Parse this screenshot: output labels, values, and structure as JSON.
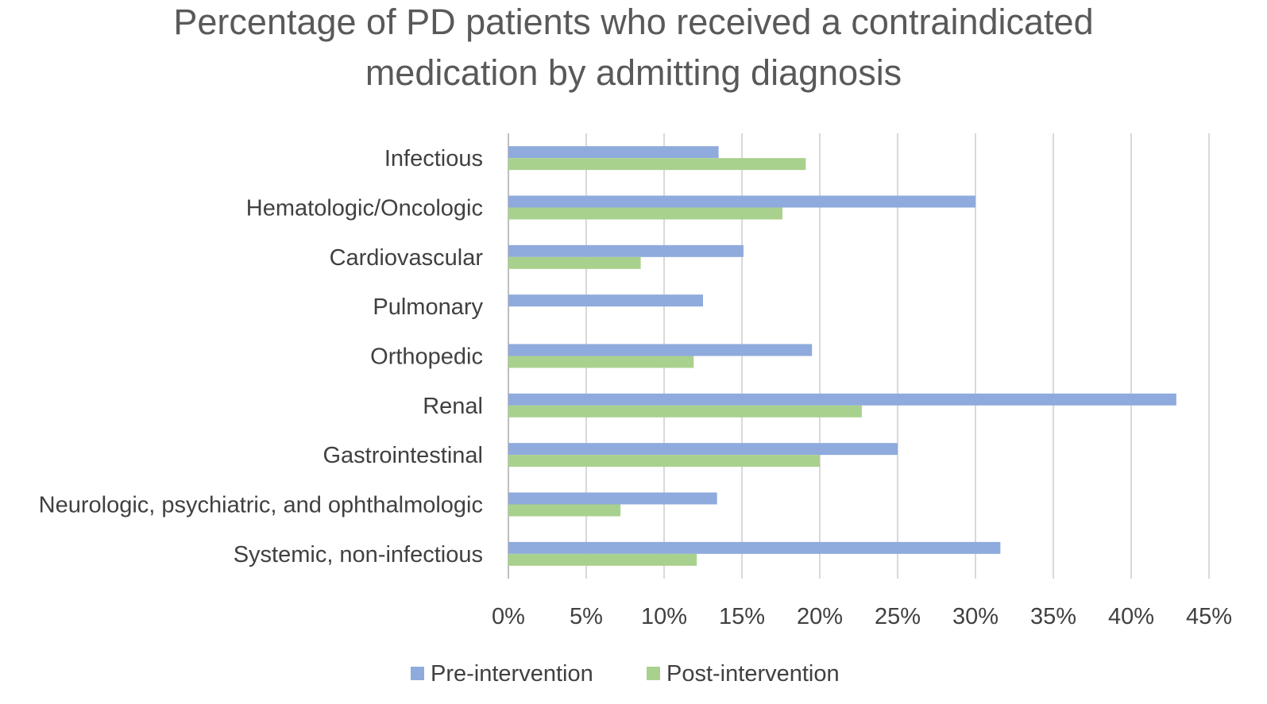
{
  "chart_data": {
    "type": "bar",
    "orientation": "horizontal",
    "title": "Percentage of PD patients who received a contraindicated medication by admitting diagnosis",
    "title_lines": [
      "Percentage of PD patients who received a contraindicated",
      "medication by admitting diagnosis"
    ],
    "categories": [
      "Infectious",
      "Hematologic/Oncologic",
      "Cardiovascular",
      "Pulmonary",
      "Orthopedic",
      "Renal",
      "Gastrointestinal",
      "Neurologic, psychiatric, and ophthalmologic",
      "Systemic, non-infectious"
    ],
    "series": [
      {
        "name": "Pre-intervention",
        "color": "#8faadc",
        "values": [
          13.5,
          30,
          15.1,
          12.5,
          19.5,
          42.9,
          25,
          13.4,
          31.6
        ]
      },
      {
        "name": "Post-intervention",
        "color": "#a9d18e",
        "values": [
          19.1,
          17.6,
          8.5,
          0,
          11.9,
          22.7,
          20,
          7.2,
          12.1
        ]
      }
    ],
    "xlim": [
      0,
      45
    ],
    "xticks": [
      "0%",
      "5%",
      "10%",
      "15%",
      "20%",
      "25%",
      "30%",
      "35%",
      "40%",
      "45%"
    ],
    "grid": true,
    "legend_position": "bottom"
  }
}
